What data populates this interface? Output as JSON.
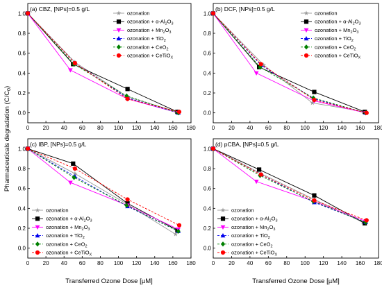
{
  "figure": {
    "shared_ylabel": "Pharmaceuticals degradation (C/C",
    "shared_ylabel_sub": "0",
    "shared_ylabel_close": ")",
    "shared_xlabel": "Transferred Ozone Dose [µM]"
  },
  "chart_data": [
    {
      "type": "line",
      "title": "(a) CBZ, [NPs]=0.5 g/L",
      "xlabel": "Transferred Ozone Dose [µM]",
      "ylabel": "Pharmaceuticals degradation (C/C0)",
      "xlim": [
        0,
        180
      ],
      "ylim": [
        -0.1,
        1.1
      ],
      "xticks": [
        "0",
        "20",
        "40",
        "60",
        "80",
        "100",
        "120",
        "140",
        "160",
        "180"
      ],
      "yticks": [
        "0.0",
        "0.2",
        "0.4",
        "0.6",
        "0.8",
        "1.0"
      ],
      "grid": false,
      "legend_position": "top-right",
      "series": [
        {
          "name": "ozonation",
          "sub": "",
          "color": "#999999",
          "marker": "star",
          "dashed": false,
          "x": [
            0,
            52,
            110,
            165
          ],
          "y": [
            1.0,
            0.51,
            0.16,
            0.01
          ]
        },
        {
          "name": "ozonation + α-Al",
          "sub": "2",
          "name2": "O",
          "sub2": "3",
          "color": "#000000",
          "marker": "square",
          "dashed": false,
          "x": [
            0,
            50,
            110,
            165
          ],
          "y": [
            1.0,
            0.49,
            0.24,
            0.01
          ]
        },
        {
          "name": "ozonation + Mn",
          "sub": "2",
          "name2": "O",
          "sub2": "3",
          "color": "#ff00ff",
          "marker": "tri-down",
          "dashed": false,
          "x": [
            0,
            47,
            110,
            166
          ],
          "y": [
            1.0,
            0.43,
            0.14,
            0.0
          ]
        },
        {
          "name": "ozonation + TiO",
          "sub": "2",
          "color": "#0000ee",
          "marker": "tri-up",
          "dashed": true,
          "x": [
            0,
            52,
            110,
            166
          ],
          "y": [
            1.0,
            0.5,
            0.15,
            0.0
          ]
        },
        {
          "name": "ozonation + CeO",
          "sub": "2",
          "color": "#008000",
          "marker": "diamond",
          "dashed": true,
          "x": [
            0,
            51,
            109,
            166
          ],
          "y": [
            1.0,
            0.49,
            0.17,
            0.0
          ]
        },
        {
          "name": "ozonation + CeTiO",
          "sub": "X",
          "color": "#ff0000",
          "marker": "circle",
          "dashed": true,
          "x": [
            0,
            52,
            110,
            167
          ],
          "y": [
            1.0,
            0.5,
            0.14,
            0.01
          ]
        }
      ]
    },
    {
      "type": "line",
      "title": "(b) DCF, [NPs]=0.5 g/L",
      "xlabel": "Transferred Ozone Dose [µM]",
      "ylabel": "Pharmaceuticals degradation (C/C0)",
      "xlim": [
        0,
        180
      ],
      "ylim": [
        -0.1,
        1.1
      ],
      "xticks": [
        "0",
        "20",
        "40",
        "60",
        "80",
        "100",
        "120",
        "140",
        "160",
        "180"
      ],
      "yticks": [
        "0.0",
        "0.2",
        "0.4",
        "0.6",
        "0.8",
        "1.0"
      ],
      "grid": false,
      "legend_position": "top-right",
      "series": [
        {
          "name": "ozonation",
          "sub": "",
          "color": "#999999",
          "marker": "star",
          "dashed": false,
          "x": [
            0,
            55,
            108,
            165
          ],
          "y": [
            1.0,
            0.48,
            0.1,
            0.01
          ]
        },
        {
          "name": "ozonation + α-Al",
          "sub": "2",
          "name2": "O",
          "sub2": "3",
          "color": "#000000",
          "marker": "square",
          "dashed": false,
          "x": [
            0,
            50,
            110,
            165
          ],
          "y": [
            1.0,
            0.46,
            0.21,
            0.01
          ]
        },
        {
          "name": "ozonation + Mn",
          "sub": "2",
          "name2": "O",
          "sub2": "3",
          "color": "#ff00ff",
          "marker": "tri-down",
          "dashed": false,
          "x": [
            0,
            47,
            110,
            166
          ],
          "y": [
            1.0,
            0.4,
            0.12,
            0.0
          ]
        },
        {
          "name": "ozonation + TiO",
          "sub": "2",
          "color": "#0000ee",
          "marker": "tri-up",
          "dashed": true,
          "x": [
            0,
            52,
            110,
            166
          ],
          "y": [
            1.0,
            0.48,
            0.14,
            0.0
          ]
        },
        {
          "name": "ozonation + CeO",
          "sub": "2",
          "color": "#008000",
          "marker": "diamond",
          "dashed": true,
          "x": [
            0,
            51,
            109,
            166
          ],
          "y": [
            1.0,
            0.46,
            0.15,
            0.0
          ]
        },
        {
          "name": "ozonation + CeTiO",
          "sub": "X",
          "color": "#ff0000",
          "marker": "circle",
          "dashed": true,
          "x": [
            0,
            52,
            110,
            167
          ],
          "y": [
            1.0,
            0.49,
            0.13,
            0.0
          ]
        }
      ]
    },
    {
      "type": "line",
      "title": "(c) IBP, [NPs]=0.5 g/L",
      "xlabel": "Transferred Ozone Dose [µM]",
      "ylabel": "Pharmaceuticals degradation (C/C0)",
      "xlim": [
        0,
        180
      ],
      "ylim": [
        -0.1,
        1.1
      ],
      "xticks": [
        "0",
        "20",
        "40",
        "60",
        "80",
        "100",
        "120",
        "140",
        "160",
        "180"
      ],
      "yticks": [
        "0.0",
        "0.2",
        "0.4",
        "0.6",
        "0.8",
        "1.0"
      ],
      "grid": false,
      "legend_position": "bottom-left",
      "series": [
        {
          "name": "ozonation",
          "sub": "",
          "color": "#999999",
          "marker": "star",
          "dashed": false,
          "x": [
            0,
            52,
            110,
            163
          ],
          "y": [
            1.0,
            0.75,
            0.44,
            0.14
          ]
        },
        {
          "name": "ozonation + α-Al",
          "sub": "2",
          "name2": "O",
          "sub2": "3",
          "color": "#000000",
          "marker": "square",
          "dashed": false,
          "x": [
            0,
            50,
            110,
            165
          ],
          "y": [
            1.0,
            0.85,
            0.45,
            0.18
          ]
        },
        {
          "name": "ozonation + Mn",
          "sub": "2",
          "name2": "O",
          "sub2": "3",
          "color": "#ff00ff",
          "marker": "tri-down",
          "dashed": false,
          "x": [
            0,
            47,
            110,
            166
          ],
          "y": [
            1.0,
            0.66,
            0.43,
            0.19
          ]
        },
        {
          "name": "ozonation + TiO",
          "sub": "2",
          "color": "#0000ee",
          "marker": "tri-up",
          "dashed": true,
          "x": [
            0,
            52,
            110,
            166
          ],
          "y": [
            1.0,
            0.72,
            0.42,
            0.17
          ]
        },
        {
          "name": "ozonation + CeO",
          "sub": "2",
          "color": "#008000",
          "marker": "diamond",
          "dashed": true,
          "x": [
            0,
            51,
            109,
            166
          ],
          "y": [
            1.0,
            0.71,
            0.43,
            0.17
          ]
        },
        {
          "name": "ozonation + CeTiO",
          "sub": "X",
          "color": "#ff0000",
          "marker": "circle",
          "dashed": true,
          "x": [
            0,
            52,
            110,
            167
          ],
          "y": [
            1.0,
            0.8,
            0.49,
            0.23
          ]
        }
      ]
    },
    {
      "type": "line",
      "title": "(d) pCBA, [NPs]=0.5 g/L",
      "xlabel": "Transferred Ozone Dose [µM]",
      "ylabel": "Pharmaceuticals degradation (C/C0)",
      "xlim": [
        0,
        180
      ],
      "ylim": [
        -0.1,
        1.1
      ],
      "xticks": [
        "0",
        "20",
        "40",
        "60",
        "80",
        "100",
        "120",
        "140",
        "160",
        "180"
      ],
      "yticks": [
        "0.0",
        "0.2",
        "0.4",
        "0.6",
        "0.8",
        "1.0"
      ],
      "grid": false,
      "legend_position": "bottom-left",
      "series": [
        {
          "name": "ozonation",
          "sub": "",
          "color": "#999999",
          "marker": "star",
          "dashed": false,
          "x": [
            0,
            52,
            110,
            163
          ],
          "y": [
            1.0,
            0.75,
            0.49,
            0.26
          ]
        },
        {
          "name": "ozonation + α-Al",
          "sub": "2",
          "name2": "O",
          "sub2": "3",
          "color": "#000000",
          "marker": "square",
          "dashed": false,
          "x": [
            0,
            50,
            110,
            165
          ],
          "y": [
            1.0,
            0.79,
            0.53,
            0.25
          ]
        },
        {
          "name": "ozonation + Mn",
          "sub": "2",
          "name2": "O",
          "sub2": "3",
          "color": "#ff00ff",
          "marker": "tri-down",
          "dashed": false,
          "x": [
            0,
            47,
            110,
            166
          ],
          "y": [
            1.0,
            0.67,
            0.47,
            0.27
          ]
        },
        {
          "name": "ozonation + TiO",
          "sub": "2",
          "color": "#0000ee",
          "marker": "tri-up",
          "dashed": true,
          "x": [
            0,
            52,
            110,
            166
          ],
          "y": [
            1.0,
            0.74,
            0.46,
            0.26
          ]
        },
        {
          "name": "ozonation + CeO",
          "sub": "2",
          "color": "#008000",
          "marker": "diamond",
          "dashed": true,
          "x": [
            0,
            51,
            109,
            166
          ],
          "y": [
            1.0,
            0.73,
            0.47,
            0.26
          ]
        },
        {
          "name": "ozonation + CeTiO",
          "sub": "X",
          "color": "#ff0000",
          "marker": "circle",
          "dashed": true,
          "x": [
            0,
            52,
            110,
            167
          ],
          "y": [
            1.0,
            0.74,
            0.48,
            0.28
          ]
        }
      ]
    }
  ]
}
